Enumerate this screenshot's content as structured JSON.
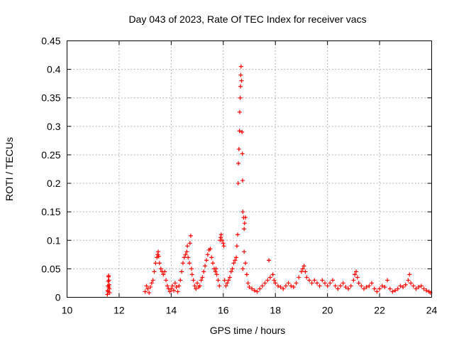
{
  "chart_data": {
    "type": "scatter",
    "title": "Day 043 of 2023, Rate Of TEC Index for receiver vacs",
    "xlabel": "GPS time / hours",
    "ylabel": "ROTI / TECUs",
    "xlim": [
      10,
      24
    ],
    "ylim": [
      0,
      0.45
    ],
    "xticks": [
      10,
      12,
      14,
      16,
      18,
      20,
      22,
      24
    ],
    "xtick_labels": [
      "10",
      "12",
      "14",
      "16",
      "18",
      "20",
      "22",
      "24"
    ],
    "yticks": [
      0,
      0.05,
      0.1,
      0.15,
      0.2,
      0.25,
      0.3,
      0.35,
      0.4,
      0.45
    ],
    "ytick_labels": [
      "0",
      "0.05",
      "0.1",
      "0.15",
      "0.2",
      "0.25",
      "0.3",
      "0.35",
      "0.4",
      "0.45"
    ],
    "grid": true,
    "marker": "+",
    "color": "#ff0000",
    "series": [
      {
        "points": [
          [
            11.55,
            0.005
          ],
          [
            11.56,
            0.012
          ],
          [
            11.57,
            0.02
          ],
          [
            11.58,
            0.028
          ],
          [
            11.59,
            0.036
          ],
          [
            11.6,
            0.038
          ],
          [
            11.61,
            0.03
          ],
          [
            11.62,
            0.022
          ],
          [
            11.63,
            0.015
          ],
          [
            11.64,
            0.008
          ],
          [
            11.58,
            0.01
          ],
          [
            11.6,
            0.018
          ],
          [
            13.0,
            0.01
          ],
          [
            13.05,
            0.02
          ],
          [
            13.1,
            0.015
          ],
          [
            13.15,
            0.008
          ],
          [
            13.2,
            0.018
          ],
          [
            13.25,
            0.025
          ],
          [
            13.3,
            0.03
          ],
          [
            13.35,
            0.045
          ],
          [
            13.4,
            0.06
          ],
          [
            13.45,
            0.07
          ],
          [
            13.48,
            0.075
          ],
          [
            13.5,
            0.08
          ],
          [
            13.52,
            0.072
          ],
          [
            13.55,
            0.06
          ],
          [
            13.6,
            0.05
          ],
          [
            13.65,
            0.045
          ],
          [
            13.7,
            0.04
          ],
          [
            13.75,
            0.045
          ],
          [
            13.8,
            0.03
          ],
          [
            13.85,
            0.02
          ],
          [
            13.9,
            0.015
          ],
          [
            13.95,
            0.01
          ],
          [
            14.0,
            0.015
          ],
          [
            14.05,
            0.02
          ],
          [
            14.1,
            0.012
          ],
          [
            14.15,
            0.025
          ],
          [
            14.2,
            0.018
          ],
          [
            14.25,
            0.01
          ],
          [
            14.3,
            0.02
          ],
          [
            14.35,
            0.03
          ],
          [
            14.4,
            0.045
          ],
          [
            14.45,
            0.06
          ],
          [
            14.5,
            0.07
          ],
          [
            14.55,
            0.075
          ],
          [
            14.6,
            0.08
          ],
          [
            14.62,
            0.09
          ],
          [
            14.65,
            0.07
          ],
          [
            14.7,
            0.06
          ],
          [
            14.72,
            0.095
          ],
          [
            14.75,
            0.108
          ],
          [
            14.78,
            0.05
          ],
          [
            14.8,
            0.04
          ],
          [
            14.85,
            0.03
          ],
          [
            14.9,
            0.02
          ],
          [
            14.95,
            0.015
          ],
          [
            15.0,
            0.025
          ],
          [
            15.05,
            0.018
          ],
          [
            15.1,
            0.02
          ],
          [
            15.15,
            0.03
          ],
          [
            15.2,
            0.035
          ],
          [
            15.25,
            0.045
          ],
          [
            15.3,
            0.055
          ],
          [
            15.35,
            0.065
          ],
          [
            15.4,
            0.075
          ],
          [
            15.45,
            0.083
          ],
          [
            15.5,
            0.085
          ],
          [
            15.55,
            0.07
          ],
          [
            15.6,
            0.06
          ],
          [
            15.65,
            0.05
          ],
          [
            15.7,
            0.045
          ],
          [
            15.72,
            0.05
          ],
          [
            15.75,
            0.04
          ],
          [
            15.8,
            0.03
          ],
          [
            15.85,
            0.02
          ],
          [
            15.88,
            0.1
          ],
          [
            15.9,
            0.105
          ],
          [
            15.92,
            0.11
          ],
          [
            15.95,
            0.1
          ],
          [
            16.0,
            0.095
          ],
          [
            16.02,
            0.09
          ],
          [
            16.05,
            0.03
          ],
          [
            16.1,
            0.02
          ],
          [
            16.15,
            0.025
          ],
          [
            16.2,
            0.03
          ],
          [
            16.25,
            0.035
          ],
          [
            16.3,
            0.045
          ],
          [
            16.35,
            0.05
          ],
          [
            16.4,
            0.06
          ],
          [
            16.45,
            0.065
          ],
          [
            16.5,
            0.07
          ],
          [
            16.52,
            0.09
          ],
          [
            16.55,
            0.11
          ],
          [
            16.57,
            0.2
          ],
          [
            16.58,
            0.235
          ],
          [
            16.6,
            0.26
          ],
          [
            16.62,
            0.292
          ],
          [
            16.63,
            0.325
          ],
          [
            16.65,
            0.35
          ],
          [
            16.66,
            0.37
          ],
          [
            16.67,
            0.39
          ],
          [
            16.68,
            0.405
          ],
          [
            16.7,
            0.38
          ],
          [
            16.72,
            0.29
          ],
          [
            16.73,
            0.252
          ],
          [
            16.74,
            0.205
          ],
          [
            16.75,
            0.15
          ],
          [
            16.78,
            0.14
          ],
          [
            16.8,
            0.12
          ],
          [
            16.82,
            0.13
          ],
          [
            16.85,
            0.14
          ],
          [
            16.8,
            0.08
          ],
          [
            16.75,
            0.05
          ],
          [
            16.85,
            0.06
          ],
          [
            16.9,
            0.04
          ],
          [
            16.95,
            0.025
          ],
          [
            17.0,
            0.018
          ],
          [
            17.1,
            0.015
          ],
          [
            17.2,
            0.012
          ],
          [
            17.3,
            0.01
          ],
          [
            17.4,
            0.015
          ],
          [
            17.5,
            0.02
          ],
          [
            17.6,
            0.025
          ],
          [
            17.7,
            0.03
          ],
          [
            17.75,
            0.065
          ],
          [
            17.8,
            0.035
          ],
          [
            17.9,
            0.04
          ],
          [
            17.95,
            0.03
          ],
          [
            18.0,
            0.025
          ],
          [
            18.1,
            0.02
          ],
          [
            18.2,
            0.018
          ],
          [
            18.3,
            0.015
          ],
          [
            18.4,
            0.02
          ],
          [
            18.5,
            0.025
          ],
          [
            18.6,
            0.02
          ],
          [
            18.7,
            0.018
          ],
          [
            18.8,
            0.025
          ],
          [
            18.9,
            0.035
          ],
          [
            19.0,
            0.045
          ],
          [
            19.05,
            0.05
          ],
          [
            19.1,
            0.055
          ],
          [
            19.15,
            0.045
          ],
          [
            19.2,
            0.035
          ],
          [
            19.3,
            0.03
          ],
          [
            19.4,
            0.025
          ],
          [
            19.5,
            0.03
          ],
          [
            19.6,
            0.025
          ],
          [
            19.7,
            0.02
          ],
          [
            19.8,
            0.03
          ],
          [
            19.9,
            0.025
          ],
          [
            20.0,
            0.02
          ],
          [
            20.1,
            0.025
          ],
          [
            20.2,
            0.03
          ],
          [
            20.3,
            0.02
          ],
          [
            20.4,
            0.015
          ],
          [
            20.5,
            0.02
          ],
          [
            20.6,
            0.025
          ],
          [
            20.7,
            0.018
          ],
          [
            20.8,
            0.015
          ],
          [
            20.9,
            0.02
          ],
          [
            21.0,
            0.03
          ],
          [
            21.05,
            0.04
          ],
          [
            21.1,
            0.045
          ],
          [
            21.15,
            0.035
          ],
          [
            21.2,
            0.025
          ],
          [
            21.3,
            0.02
          ],
          [
            21.4,
            0.015
          ],
          [
            21.5,
            0.018
          ],
          [
            21.6,
            0.02
          ],
          [
            21.7,
            0.025
          ],
          [
            21.8,
            0.015
          ],
          [
            21.9,
            0.01
          ],
          [
            22.0,
            0.015
          ],
          [
            22.1,
            0.02
          ],
          [
            22.2,
            0.018
          ],
          [
            22.3,
            0.03
          ],
          [
            22.4,
            0.015
          ],
          [
            22.5,
            0.01
          ],
          [
            22.6,
            0.012
          ],
          [
            22.7,
            0.015
          ],
          [
            22.8,
            0.02
          ],
          [
            22.9,
            0.018
          ],
          [
            23.0,
            0.022
          ],
          [
            23.1,
            0.03
          ],
          [
            23.15,
            0.04
          ],
          [
            23.2,
            0.025
          ],
          [
            23.3,
            0.02
          ],
          [
            23.4,
            0.015
          ],
          [
            23.5,
            0.018
          ],
          [
            23.6,
            0.02
          ],
          [
            23.7,
            0.015
          ],
          [
            23.8,
            0.012
          ],
          [
            23.9,
            0.01
          ],
          [
            23.95,
            0.008
          ]
        ]
      }
    ]
  }
}
